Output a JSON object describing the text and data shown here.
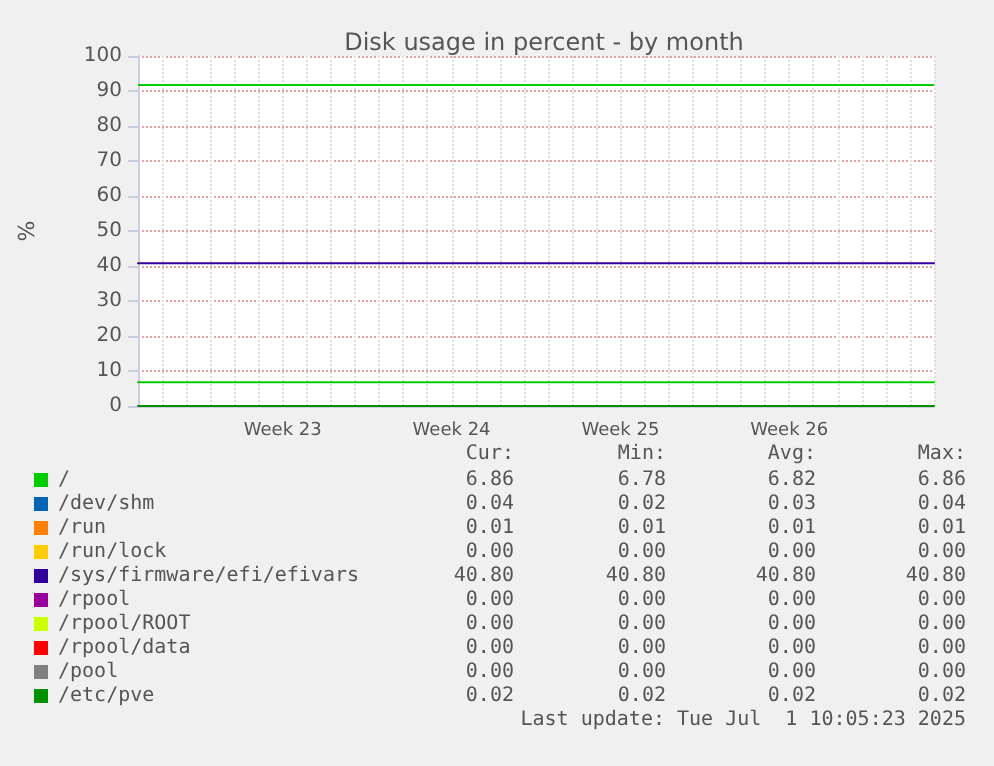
{
  "chart_data": {
    "type": "line",
    "title": "Disk usage in percent - by month",
    "ylabel": "%",
    "categories": [
      null,
      null,
      null,
      null,
      null,
      null,
      "Week 23",
      null,
      null,
      null,
      null,
      null,
      null,
      "Week 24",
      null,
      null,
      null,
      null,
      null,
      null,
      "Week 25",
      null,
      null,
      null,
      null,
      null,
      null,
      "Week 26",
      null,
      null,
      null,
      null,
      null,
      null
    ],
    "ylim": [
      0,
      100
    ],
    "yticks": [
      0,
      10,
      20,
      30,
      40,
      50,
      60,
      70,
      80,
      90,
      100
    ],
    "grid": true,
    "legend": "bottom",
    "marker": "none",
    "line_style": "solid",
    "ref_lines": [
      {
        "axis": "y",
        "value": 92,
        "color": "#00cc00"
      }
    ],
    "series": [
      {
        "name": "/",
        "color": "#00cc00",
        "values": [
          6.8,
          6.8,
          6.8,
          6.8,
          6.8,
          6.8,
          6.8,
          6.8,
          6.8,
          6.8,
          6.8,
          6.8,
          6.8,
          6.8,
          6.8,
          6.8,
          6.8,
          6.8,
          6.8,
          6.8,
          6.8,
          6.8,
          6.8,
          6.8,
          6.8,
          6.8,
          6.8,
          6.8,
          6.8,
          6.8,
          6.8,
          6.8,
          6.8,
          6.8
        ]
      },
      {
        "name": "/dev/shm",
        "color": "#0066b3",
        "values": [
          null,
          null,
          null,
          null,
          null,
          null,
          null,
          null,
          null,
          null,
          null,
          null,
          null,
          null,
          null,
          null,
          null,
          null,
          null,
          null,
          null,
          null,
          null,
          null,
          null,
          null,
          null,
          null,
          null,
          null,
          null,
          null,
          null,
          null
        ]
      },
      {
        "name": "/run",
        "color": "#ff8000",
        "values": [
          null,
          null,
          null,
          null,
          null,
          null,
          null,
          null,
          null,
          null,
          null,
          null,
          null,
          null,
          null,
          null,
          null,
          null,
          null,
          null,
          null,
          null,
          null,
          null,
          null,
          null,
          null,
          null,
          null,
          null,
          null,
          null,
          null,
          null
        ]
      },
      {
        "name": "/run/lock",
        "color": "#ffcc00",
        "values": [
          null,
          null,
          null,
          null,
          null,
          null,
          null,
          null,
          null,
          null,
          null,
          null,
          null,
          null,
          null,
          null,
          null,
          null,
          null,
          null,
          null,
          null,
          null,
          null,
          null,
          null,
          null,
          null,
          null,
          null,
          null,
          null,
          null,
          null
        ]
      },
      {
        "name": "/sys/firmware/efi/efivars",
        "color": "#330099",
        "values": [
          40.8,
          40.8,
          40.8,
          40.8,
          40.8,
          40.8,
          40.8,
          40.8,
          40.8,
          40.8,
          40.8,
          40.8,
          40.8,
          40.8,
          40.8,
          40.8,
          40.8,
          40.8,
          40.8,
          40.8,
          40.8,
          40.8,
          40.8,
          40.8,
          40.8,
          40.8,
          40.8,
          40.8,
          40.8,
          40.8,
          40.8,
          40.8,
          40.8,
          40.8
        ]
      },
      {
        "name": "/rpool",
        "color": "#990099",
        "values": [
          null,
          null,
          null,
          null,
          null,
          null,
          null,
          null,
          null,
          null,
          null,
          null,
          null,
          null,
          null,
          null,
          null,
          null,
          null,
          null,
          null,
          null,
          null,
          null,
          null,
          null,
          null,
          null,
          null,
          null,
          null,
          null,
          null,
          null
        ]
      },
      {
        "name": "/rpool/ROOT",
        "color": "#ccff00",
        "values": [
          null,
          null,
          null,
          null,
          null,
          null,
          null,
          null,
          null,
          null,
          null,
          null,
          null,
          null,
          null,
          null,
          null,
          null,
          null,
          null,
          null,
          null,
          null,
          null,
          null,
          null,
          null,
          null,
          null,
          null,
          null,
          null,
          null,
          null
        ]
      },
      {
        "name": "/rpool/data",
        "color": "#ff0000",
        "values": [
          null,
          null,
          null,
          null,
          null,
          null,
          null,
          null,
          null,
          null,
          null,
          null,
          null,
          null,
          null,
          null,
          null,
          null,
          null,
          null,
          null,
          null,
          null,
          null,
          null,
          null,
          null,
          null,
          null,
          null,
          null,
          null,
          null,
          null
        ]
      },
      {
        "name": "/pool",
        "color": "#808080",
        "values": [
          null,
          null,
          null,
          null,
          null,
          null,
          null,
          null,
          null,
          null,
          null,
          null,
          null,
          null,
          null,
          null,
          null,
          null,
          null,
          null,
          null,
          null,
          null,
          null,
          null,
          null,
          null,
          null,
          null,
          null,
          null,
          null,
          null,
          null
        ]
      },
      {
        "name": "/etc/pve",
        "color": "#008f00",
        "values": [
          0,
          0,
          0,
          0,
          0,
          0,
          0,
          0,
          0,
          0,
          0,
          0,
          0,
          0,
          0,
          0,
          0,
          0,
          0,
          0,
          0,
          0,
          0,
          0,
          0,
          0,
          0,
          0,
          0,
          0,
          0,
          0,
          0,
          0
        ]
      }
    ],
    "annotations": [
      "Cur:",
      "Min:",
      "Avg:",
      "Max:",
      "6.86",
      "6.78",
      "6.82",
      "6.86",
      "0.04",
      "0.02",
      "0.03",
      "0.04",
      "0.01",
      "0.01",
      "0.01",
      "0.01",
      "0.00",
      "0.00",
      "0.00",
      "0.00",
      "40.80",
      "40.80",
      "40.80",
      "40.80",
      "0.00",
      "0.00",
      "0.00",
      "0.00",
      "0.00",
      "0.00",
      "0.00",
      "0.00",
      "0.00",
      "0.00",
      "0.00",
      "0.00",
      "0.00",
      "0.00",
      "0.00",
      "0.00",
      "0.02",
      "0.02",
      "0.02",
      "0.02",
      "Last update: Tue Jul  1 10:05:23 2025"
    ]
  }
}
